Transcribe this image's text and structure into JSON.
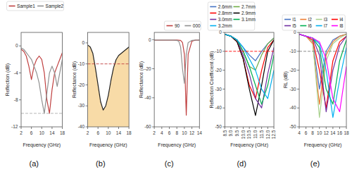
{
  "chart_data": [
    {
      "type": "line",
      "title": "(a)",
      "x_label": "Frequency (GHz)",
      "y_label": "Reflection (dB)",
      "x": [
        2,
        3,
        4,
        5,
        6,
        7,
        8,
        9,
        10,
        11,
        12,
        13,
        14,
        15,
        16,
        17,
        18
      ],
      "series": [
        {
          "name": "Sample1",
          "color": "#c04040",
          "values": [
            -0.5,
            -0.8,
            -1.5,
            -3,
            -5,
            -3,
            -2,
            -1.5,
            -2,
            -4,
            -8,
            -10,
            -6.5,
            -4,
            -3,
            -2,
            -1
          ]
        },
        {
          "name": "Sample2",
          "color": "#909090",
          "values": [
            -0.3,
            -0.5,
            -1,
            -1.5,
            -2,
            -3,
            -4,
            -5.5,
            -8,
            -10,
            -7,
            -4,
            -3,
            -4,
            -6,
            -4,
            -2
          ]
        }
      ],
      "xlim": [
        2,
        18
      ],
      "ylim": [
        -12,
        2
      ],
      "xticks": [
        2,
        6,
        10,
        14,
        18
      ],
      "yticks": [
        -12,
        -8,
        -4,
        0
      ],
      "hline": {
        "value": -10,
        "color": "#b0b0b0",
        "line_style": "dashed"
      },
      "legend": "upper right"
    },
    {
      "type": "line",
      "title": "(b)",
      "x_label": "Frequency (GHz)",
      "y_label": "Reflectance (dB)",
      "x": [
        2,
        3,
        4,
        5,
        6,
        7,
        8,
        9,
        10,
        11,
        12,
        13,
        14,
        15,
        16,
        17,
        18
      ],
      "series": [
        {
          "type": "area",
          "color": "#202020",
          "values": [
            -1,
            -2,
            -5,
            -12,
            -20,
            -28,
            -32,
            -30,
            -25,
            -18,
            -12,
            -8,
            -6,
            -5,
            -4,
            -3,
            -2
          ]
        }
      ],
      "xlim": [
        2,
        18
      ],
      "ylim": [
        -40,
        5
      ],
      "xticks": [
        2,
        6,
        10,
        14,
        18
      ],
      "yticks": [
        -40,
        -30,
        -20,
        -10,
        0
      ],
      "hline": {
        "value": -10,
        "color": "#c04040",
        "line_style": "dashed"
      }
    },
    {
      "type": "line",
      "title": "(c)",
      "x_label": "Frequency (GHz)",
      "y_label": "Reflectance (dB)",
      "series": [
        {
          "name": "90",
          "color": "#c04040",
          "x": [
            2,
            3,
            4,
            5,
            6,
            7,
            8,
            9,
            9.5,
            10,
            10.5,
            11,
            12,
            13,
            14
          ],
          "values": [
            -0.3,
            -0.3,
            -0.3,
            -0.3,
            -0.3,
            -0.3,
            -0.3,
            -0.5,
            -2,
            -10,
            -52,
            -10,
            -1,
            -0.3,
            -0.3
          ]
        },
        {
          "name": "000",
          "color": "#909090",
          "x": [
            2,
            3,
            4,
            5,
            6,
            7,
            8,
            8.5,
            9,
            9.5,
            10,
            10.5,
            11,
            12,
            13,
            14
          ],
          "values": [
            -0.3,
            -0.3,
            -0.3,
            -0.3,
            -0.3,
            -0.3,
            -0.5,
            -1,
            -5,
            -20,
            -30,
            -10,
            -2,
            -0.5,
            -0.3,
            -0.3
          ]
        }
      ],
      "xlim": [
        2,
        14
      ],
      "ylim": [
        -60,
        5
      ],
      "xticks": [
        2,
        4,
        6,
        8,
        10,
        12,
        14
      ],
      "yticks": [
        -60,
        -40,
        -20,
        0
      ],
      "legend": "lower right"
    },
    {
      "type": "line",
      "title": "(d)",
      "x_label": "Frequency (GHz)",
      "y_label": "Reflection Coefficient (dB)",
      "x": [
        8.5,
        9,
        9.5,
        10,
        10.5,
        11,
        11.5,
        12,
        12.5
      ],
      "series": [
        {
          "name": "2.6mm",
          "color": "#4472c4",
          "values": [
            -1,
            -2,
            -4,
            -8,
            -12,
            -15,
            -10,
            -6,
            -3
          ]
        },
        {
          "name": "2.7mm",
          "color": "#70ad47",
          "values": [
            -1,
            -2,
            -4,
            -10,
            -18,
            -20,
            -12,
            -6,
            -3
          ]
        },
        {
          "name": "2.8mm",
          "color": "#ff0000",
          "values": [
            -1,
            -2,
            -5,
            -14,
            -28,
            -35,
            -20,
            -8,
            -4
          ]
        },
        {
          "name": "2.9mm",
          "color": "#000000",
          "values": [
            -1,
            -2,
            -5,
            -14,
            -30,
            -44,
            -28,
            -10,
            -4
          ]
        },
        {
          "name": "3.0mm",
          "color": "#7030a0",
          "values": [
            -1,
            -2,
            -4,
            -12,
            -22,
            -35,
            -40,
            -22,
            -8
          ]
        },
        {
          "name": "3.1mm",
          "color": "#00b050",
          "values": [
            -1,
            -2,
            -4,
            -10,
            -18,
            -28,
            -38,
            -28,
            -12
          ]
        },
        {
          "name": "3.2mm",
          "color": "#00b0f0",
          "values": [
            -1,
            -2,
            -4,
            -8,
            -14,
            -20,
            -30,
            -35,
            -20
          ]
        }
      ],
      "xlim": [
        8.5,
        12.5
      ],
      "ylim": [
        -50,
        0
      ],
      "xticks": [
        8.5,
        {
          "value": 9,
          "label": "9.0"
        },
        9.5,
        {
          "value": 10,
          "label": "10.0"
        },
        10.5,
        {
          "value": 11,
          "label": "11.0"
        },
        11.5,
        {
          "value": 12,
          "label": "12.0"
        },
        12.5
      ],
      "yticks": [
        -50,
        -40,
        -30,
        -20,
        -10,
        0
      ],
      "hline": {
        "value": -10,
        "color": "#ff0000",
        "line_style": "dashed"
      },
      "legend": "lower left"
    },
    {
      "type": "line",
      "title": "(e)",
      "x_label": "Frequency (GHz)",
      "y_label": "RL (dB)",
      "x": [
        4,
        6,
        8,
        10,
        12,
        14,
        16,
        18
      ],
      "series": [
        {
          "name": "l1",
          "color": "#4472c4",
          "values": [
            -1,
            -2,
            -5,
            -30,
            -10,
            -4,
            -2,
            -1
          ]
        },
        {
          "name": "l2",
          "color": "#ed7d31",
          "values": [
            -1,
            -2,
            -6,
            -38,
            -12,
            -5,
            -2,
            -1
          ]
        },
        {
          "name": "l3",
          "color": "#a9d18e",
          "values": [
            -1,
            -2,
            -5,
            -45,
            -15,
            -6,
            -3,
            -1
          ]
        },
        {
          "name": "l4",
          "color": "#ff0000",
          "values": [
            -1,
            -2,
            -4,
            -20,
            -40,
            -15,
            -5,
            -2
          ]
        },
        {
          "name": "l5",
          "color": "#7030a0",
          "values": [
            -1,
            -2,
            -3,
            -12,
            -42,
            -20,
            -7,
            -2
          ]
        },
        {
          "name": "l6",
          "color": "#00b050",
          "values": [
            -1,
            -2,
            -3,
            -8,
            -30,
            -38,
            -15,
            -4
          ]
        },
        {
          "name": "l7",
          "color": "#00b0f0",
          "values": [
            -1,
            -2,
            -3,
            -6,
            -20,
            -45,
            -25,
            -8
          ]
        },
        {
          "name": "l8",
          "color": "#ff00ff",
          "values": [
            -1,
            -2,
            -3,
            -5,
            -14,
            -35,
            -42,
            -18
          ]
        }
      ],
      "xlim": [
        4,
        18
      ],
      "ylim": [
        -50,
        0
      ],
      "xticks": [
        4,
        6,
        8,
        10,
        12,
        14,
        16,
        18
      ],
      "yticks": [
        -50,
        -40,
        -30,
        -20,
        -10,
        0
      ],
      "hline": {
        "value": -10,
        "color": "#808080",
        "line_style": "dashed"
      },
      "legend": "lower left"
    }
  ]
}
